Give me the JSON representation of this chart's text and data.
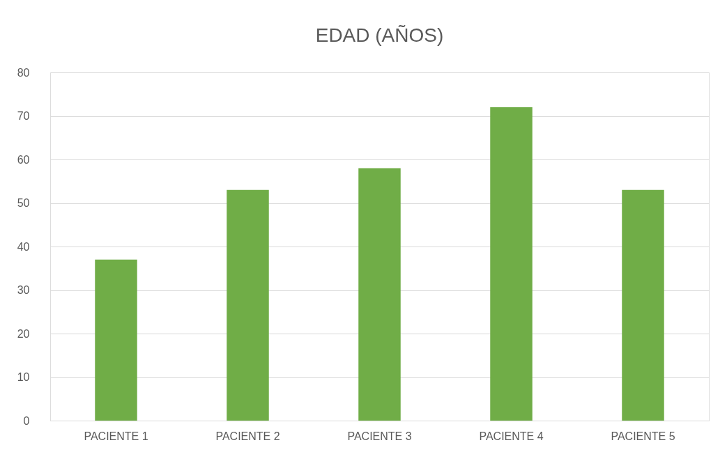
{
  "chart_data": {
    "type": "bar",
    "title": "EDAD (AÑOS)",
    "categories": [
      "PACIENTE 1",
      "PACIENTE 2",
      "PACIENTE 3",
      "PACIENTE 4",
      "PACIENTE 5"
    ],
    "values": [
      37,
      53,
      58,
      72,
      53
    ],
    "color": "#70ad47",
    "ylim": [
      0,
      80
    ],
    "yticks": [
      0,
      10,
      20,
      30,
      40,
      50,
      60,
      70,
      80
    ],
    "grid": "y"
  }
}
